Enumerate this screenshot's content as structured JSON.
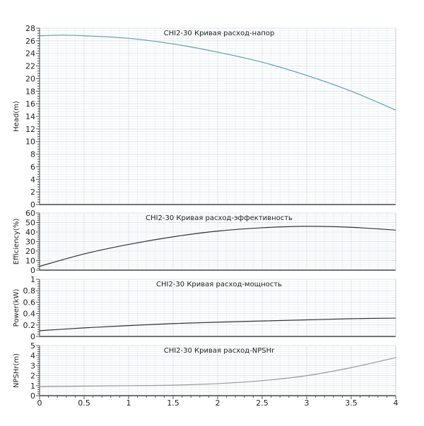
{
  "chart_data": [
    {
      "type": "line",
      "title": "CHI2-30 Кривая расход-напор",
      "xlabel": "",
      "ylabel": "Head(m)",
      "xlim": [
        0,
        4
      ],
      "ylim": [
        0,
        28
      ],
      "ytick_step": 2,
      "grid": true,
      "color": "#5b9fb1",
      "x": [
        0,
        0.25,
        0.5,
        1,
        1.5,
        2,
        2.5,
        3,
        3.5,
        4
      ],
      "y": [
        26.8,
        26.9,
        26.8,
        26.4,
        25.5,
        24.2,
        22.6,
        20.5,
        18.0,
        15.0
      ]
    },
    {
      "type": "line",
      "title": "CHI2-30 Кривая расход-эффективность",
      "xlabel": "",
      "ylabel": "Efficiency(%)",
      "xlim": [
        0,
        4
      ],
      "ylim": [
        0,
        60
      ],
      "ytick_step": 10,
      "grid": true,
      "color": "#333333",
      "x": [
        0,
        0.5,
        1,
        1.5,
        2,
        2.5,
        3,
        3.5,
        4
      ],
      "y": [
        4,
        17,
        27,
        35,
        41,
        44.5,
        46,
        45,
        42
      ]
    },
    {
      "type": "line",
      "title": "CHI2-30 Кривая расход-мощность",
      "xlabel": "",
      "ylabel": "Power(kW)",
      "xlim": [
        0,
        4
      ],
      "ylim": [
        0,
        1
      ],
      "ytick_step": 0.2,
      "grid": true,
      "color": "#333333",
      "x": [
        0,
        0.5,
        1,
        1.5,
        2,
        2.5,
        3,
        3.5,
        4
      ],
      "y": [
        0.1,
        0.15,
        0.19,
        0.225,
        0.25,
        0.27,
        0.29,
        0.31,
        0.32
      ]
    },
    {
      "type": "line",
      "title": "CHI2-30 Кривая расход-NPSHr",
      "xlabel": "",
      "ylabel": "NPSHr(m)",
      "xlim": [
        0,
        4
      ],
      "ylim": [
        0,
        5
      ],
      "ytick_step": 1,
      "grid": true,
      "color": "#999999",
      "x": [
        0,
        0.5,
        1,
        1.5,
        2,
        2.5,
        3,
        3.5,
        4
      ],
      "y": [
        0.9,
        0.95,
        1.0,
        1.05,
        1.2,
        1.5,
        2.0,
        2.8,
        3.8
      ],
      "xticks": [
        "0",
        "0.5",
        "1",
        "1.5",
        "2",
        "2.5",
        "3",
        "3.5",
        "4"
      ]
    }
  ]
}
